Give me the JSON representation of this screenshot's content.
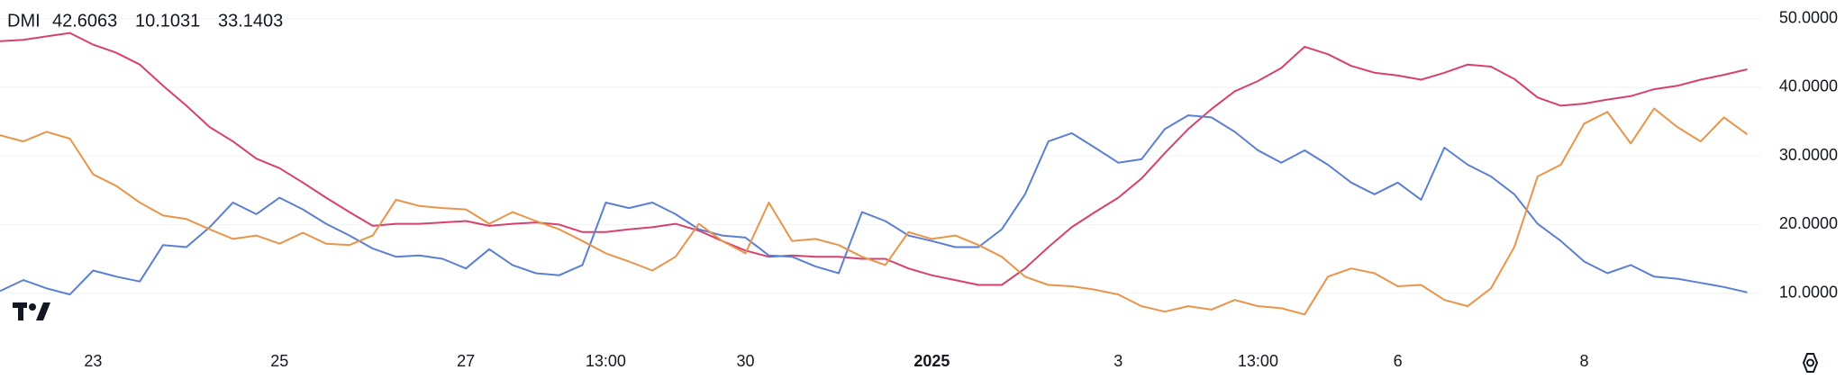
{
  "chart_data": {
    "type": "line",
    "title": "DMI",
    "categories": [
      null,
      null,
      null,
      null,
      "23",
      null,
      null,
      null,
      null,
      null,
      null,
      null,
      "25",
      null,
      null,
      null,
      null,
      null,
      null,
      null,
      "27",
      null,
      null,
      null,
      null,
      null,
      "13:00",
      null,
      null,
      null,
      null,
      null,
      "30",
      null,
      null,
      null,
      null,
      null,
      null,
      null,
      "2025",
      null,
      null,
      null,
      null,
      null,
      null,
      null,
      "3",
      null,
      null,
      null,
      null,
      null,
      "13:00",
      null,
      null,
      null,
      null,
      null,
      "6",
      null,
      null,
      null,
      null,
      null,
      null,
      null,
      "8",
      null,
      null,
      null,
      null,
      null,
      null,
      null
    ],
    "series": [
      {
        "color": "#d6416f",
        "values": [
          46.7,
          46.9,
          47.4,
          47.9,
          46.2,
          45.0,
          43.3,
          40.2,
          37.3,
          34.2,
          32.1,
          29.6,
          28.2,
          26.1,
          23.9,
          21.8,
          19.8,
          20.1,
          20.1,
          20.3,
          20.5,
          19.8,
          20.1,
          20.3,
          20.0,
          18.9,
          18.9,
          19.3,
          19.6,
          20.1,
          19.1,
          17.6,
          16.2,
          15.3,
          15.5,
          15.3,
          15.3,
          15.0,
          15.0,
          13.6,
          12.6,
          11.9,
          11.2,
          11.2,
          13.6,
          16.7,
          19.6,
          21.8,
          23.9,
          26.7,
          30.4,
          33.9,
          36.8,
          39.4,
          40.9,
          42.8,
          45.9,
          44.8,
          43.1,
          42.1,
          41.7,
          41.1,
          42.1,
          43.3,
          43.0,
          41.2,
          38.5,
          37.3,
          37.6,
          38.2,
          38.7,
          39.7,
          40.2,
          41.1,
          41.8,
          42.6063
        ]
      },
      {
        "color": "#5b7fd1",
        "values": [
          10.3,
          11.9,
          10.7,
          9.8,
          13.3,
          12.4,
          11.7,
          17.0,
          16.7,
          19.6,
          23.2,
          21.5,
          23.9,
          22.2,
          20.1,
          18.4,
          16.5,
          15.3,
          15.5,
          15.0,
          13.6,
          16.4,
          14.1,
          12.9,
          12.6,
          14.1,
          23.2,
          22.4,
          23.2,
          21.5,
          19.3,
          18.4,
          18.1,
          15.5,
          15.3,
          13.9,
          12.9,
          21.8,
          20.5,
          18.4,
          17.6,
          16.7,
          16.7,
          19.3,
          24.4,
          32.1,
          33.3,
          31.2,
          29.0,
          29.5,
          33.9,
          35.9,
          35.6,
          33.5,
          30.8,
          29.0,
          30.8,
          28.7,
          26.1,
          24.4,
          26.1,
          23.6,
          31.2,
          28.7,
          27.0,
          24.4,
          20.1,
          17.6,
          14.6,
          12.9,
          14.1,
          12.4,
          12.1,
          11.5,
          10.9,
          10.1031
        ]
      },
      {
        "color": "#e8954a",
        "values": [
          33.0,
          32.1,
          33.5,
          32.5,
          27.3,
          25.6,
          23.2,
          21.3,
          20.8,
          19.3,
          17.9,
          18.4,
          17.2,
          18.8,
          17.2,
          17.0,
          18.4,
          23.6,
          22.7,
          22.4,
          22.2,
          20.1,
          21.8,
          20.5,
          19.3,
          17.6,
          15.8,
          14.6,
          13.3,
          15.3,
          20.1,
          17.6,
          15.8,
          23.2,
          17.6,
          17.9,
          17.0,
          15.3,
          14.1,
          18.9,
          17.9,
          18.4,
          17.0,
          15.3,
          12.4,
          11.2,
          11.0,
          10.5,
          9.8,
          8.1,
          7.3,
          8.1,
          7.6,
          9.0,
          8.1,
          7.8,
          6.9,
          12.4,
          13.6,
          12.9,
          11.0,
          11.2,
          9.0,
          8.1,
          10.7,
          16.7,
          27.0,
          28.7,
          34.7,
          36.4,
          31.8,
          36.9,
          34.2,
          32.1,
          35.6,
          33.1403
        ]
      }
    ],
    "ylim": [
      3,
      52.7
    ],
    "yticks": [
      {
        "value": 10,
        "label": "10.0000"
      },
      {
        "value": 20,
        "label": "20.0000"
      },
      {
        "value": 30,
        "label": "30.0000"
      },
      {
        "value": 40,
        "label": "40.0000"
      },
      {
        "value": 50,
        "label": "50.0000"
      }
    ],
    "grid": true
  }
}
